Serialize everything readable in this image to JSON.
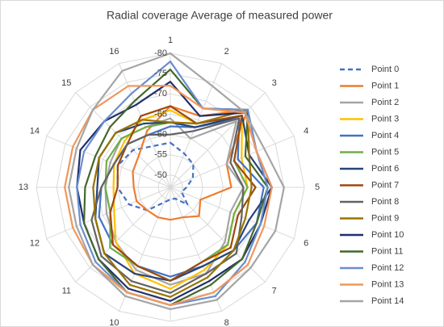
{
  "chart_data": {
    "type": "radar",
    "title": "Radial coverage Average of measured power",
    "categories": [
      "1",
      "2",
      "3",
      "4",
      "5",
      "6",
      "7",
      "8",
      "9",
      "10",
      "11",
      "12",
      "13",
      "14",
      "15",
      "16"
    ],
    "ylim": [
      -47,
      -80
    ],
    "yticks": [
      -50,
      -55,
      -60,
      -65,
      -70,
      -75,
      -80
    ],
    "grid": true,
    "series": [
      {
        "name": "Point 0",
        "color": "#4472c4",
        "dashed": true,
        "values": [
          -58,
          -56,
          -55,
          -53,
          -51,
          -50,
          -53,
          -50,
          -50,
          -51,
          -55,
          -58,
          -60,
          -61,
          -60,
          -58
        ]
      },
      {
        "name": "Point 1",
        "color": "#ed7d31",
        "values": [
          -67,
          -66,
          -74,
          -62,
          -62,
          -55,
          -57,
          -55,
          -55,
          -55,
          -55,
          -56,
          -56,
          -57,
          -58,
          -62
        ]
      },
      {
        "name": "Point 2",
        "color": "#a5a5a5",
        "values": [
          -64,
          -60,
          -70,
          -62,
          -65,
          -63,
          -66,
          -70,
          -71,
          -69,
          -66,
          -64,
          -63,
          -63,
          -64,
          -63
        ]
      },
      {
        "name": "Point 3",
        "color": "#ffc000",
        "values": [
          -66,
          -64,
          -72,
          -66,
          -66,
          -64,
          -67,
          -69,
          -72,
          -70,
          -66,
          -62,
          -61,
          -62,
          -63,
          -65
        ]
      },
      {
        "name": "Point 4",
        "color": "#4472c4",
        "values": [
          -62,
          -63,
          -71,
          -65,
          -70,
          -70,
          -69,
          -68,
          -69,
          -68,
          -67,
          -66,
          -64,
          -62,
          -62,
          -61
        ]
      },
      {
        "name": "Point 5",
        "color": "#70ad47",
        "values": [
          -63,
          -64,
          -72,
          -64,
          -66,
          -64,
          -67,
          -67,
          -70,
          -68,
          -68,
          -63,
          -63,
          -64,
          -64,
          -63
        ]
      },
      {
        "name": "Point 6",
        "color": "#264478",
        "values": [
          -63,
          -63,
          -72,
          -68,
          -72,
          -68,
          -69,
          -68,
          -70,
          -70,
          -70,
          -67,
          -65,
          -66,
          -66,
          -64
        ]
      },
      {
        "name": "Point 7",
        "color": "#9e480e",
        "values": [
          -67,
          -64,
          -72,
          -64,
          -68,
          -65,
          -68,
          -67,
          -70,
          -68,
          -67,
          -63,
          -60,
          -61,
          -62,
          -66
        ]
      },
      {
        "name": "Point 8",
        "color": "#636363",
        "values": [
          -60,
          -62,
          -71,
          -63,
          -65,
          -66,
          -70,
          -70,
          -73,
          -72,
          -71,
          -68,
          -64,
          -62,
          -62,
          -61
        ]
      },
      {
        "name": "Point 9",
        "color": "#997300",
        "values": [
          -63,
          -64,
          -74,
          -68,
          -67,
          -67,
          -69,
          -71,
          -74,
          -73,
          -70,
          -67,
          -66,
          -66,
          -66,
          -65
        ]
      },
      {
        "name": "Point 10",
        "color": "#1f2f6b",
        "values": [
          -73,
          -66,
          -73,
          -70,
          -72,
          -71,
          -72,
          -72,
          -75,
          -74,
          -72,
          -70,
          -70,
          -71,
          -70,
          -69
        ]
      },
      {
        "name": "Point 11",
        "color": "#43682b",
        "values": [
          -76,
          -68,
          -74,
          -67,
          -71,
          -70,
          -72,
          -73,
          -76,
          -75,
          -72,
          -70,
          -68,
          -67,
          -68,
          -70
        ]
      },
      {
        "name": "Point 12",
        "color": "#698ed0",
        "values": [
          -78,
          -68,
          -74,
          -70,
          -71,
          -71,
          -73,
          -76,
          -76,
          -75,
          -73,
          -71,
          -70,
          -70,
          -70,
          -72
        ]
      },
      {
        "name": "Point 13",
        "color": "#f1975a",
        "values": [
          -72,
          -68,
          -73,
          -70,
          -72,
          -72,
          -74,
          -75,
          -76,
          -75,
          -74,
          -73,
          -73,
          -73,
          -74,
          -74
        ]
      },
      {
        "name": "Point 14",
        "color": "#a5a5a5",
        "values": [
          -80,
          -74,
          -73,
          -72,
          -75,
          -75,
          -75,
          -77,
          -77,
          -76,
          -74,
          -72,
          -72,
          -72,
          -74,
          -78
        ]
      }
    ]
  }
}
